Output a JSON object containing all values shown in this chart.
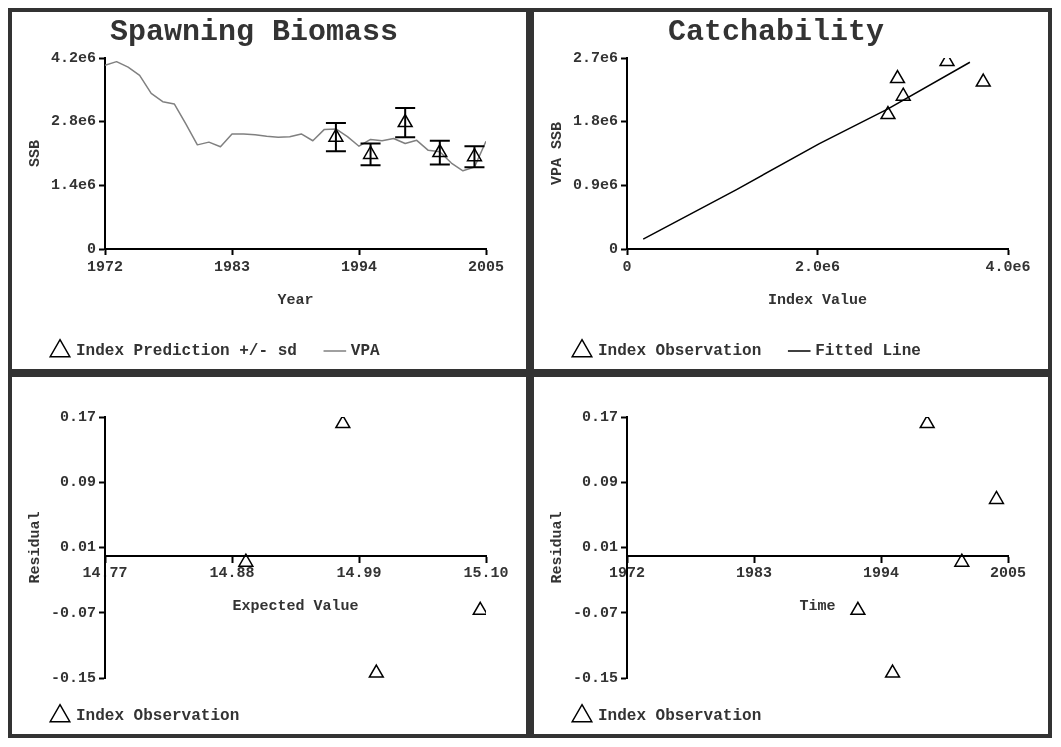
{
  "chart_data": [
    {
      "type": "scatter",
      "title": "Spawning Biomass",
      "xlabel": "Year",
      "ylabel": "SSB",
      "xlim": [
        1972,
        2005
      ],
      "xticks": [
        1972,
        1983,
        1994,
        2005
      ],
      "ylim": [
        0,
        4200000
      ],
      "yticks": [
        0,
        {
          "value": 1400000,
          "label": "1.4e6"
        },
        {
          "value": 2800000,
          "label": "2.8e6"
        },
        {
          "value": 4200000,
          "label": "4.2e6"
        }
      ],
      "grid": false,
      "legend": "bottom",
      "series": [
        {
          "name": "Index Prediction +/- sd",
          "type": "scatter",
          "marker": "triangle",
          "color": "#000000",
          "x": [
            1992,
            1995,
            1998,
            2001,
            2004
          ],
          "values": [
            2460000,
            2080000,
            2780000,
            2120000,
            2030000
          ],
          "errors": [
            310000,
            240000,
            320000,
            260000,
            230000
          ]
        },
        {
          "name": "VPA",
          "type": "line",
          "color": "#808080",
          "x": [
            1972,
            1973,
            1974,
            1975,
            1976,
            1977,
            1978,
            1979,
            1980,
            1981,
            1982,
            1983,
            1984,
            1985,
            1986,
            1987,
            1988,
            1989,
            1990,
            1991,
            1992,
            1993,
            1994,
            1995,
            1996,
            1997,
            1998,
            1999,
            2000,
            2001,
            2002,
            2003,
            2004,
            2005
          ],
          "values": [
            4040000,
            4120000,
            4000000,
            3820000,
            3420000,
            3240000,
            3190000,
            2750000,
            2290000,
            2350000,
            2250000,
            2530000,
            2530000,
            2510000,
            2480000,
            2460000,
            2470000,
            2530000,
            2380000,
            2630000,
            2640000,
            2470000,
            2260000,
            2410000,
            2380000,
            2430000,
            2320000,
            2390000,
            2170000,
            2140000,
            1890000,
            1720000,
            1800000,
            2370000
          ]
        }
      ]
    },
    {
      "type": "scatter",
      "title": "Catchability",
      "xlabel": "Index Value",
      "ylabel": "VPA SSB",
      "xlim": [
        0,
        4000000
      ],
      "xticks": [
        0,
        {
          "value": 2000000,
          "label": "2.0e6"
        },
        {
          "value": 4000000,
          "label": "4.0e6"
        }
      ],
      "ylim": [
        0,
        2700000
      ],
      "yticks": [
        0,
        {
          "value": 900000,
          "label": "0.9e6"
        },
        {
          "value": 1800000,
          "label": "1.8e6"
        },
        {
          "value": 2700000,
          "label": "2.7e6"
        }
      ],
      "grid": false,
      "legend": "bottom",
      "series": [
        {
          "name": "Index Observation",
          "type": "scatter",
          "marker": "triangle",
          "color": "#000000",
          "x": [
            2840000,
            3360000,
            3740000,
            2900000,
            2740000
          ],
          "values": [
            2410000,
            2650000,
            2360000,
            2160000,
            1900000
          ]
        },
        {
          "name": "Fitted Line",
          "type": "line",
          "color": "#000000",
          "x": [
            170000,
            1150000,
            2020000,
            2740000,
            3600000
          ],
          "values": [
            140000,
            840000,
            1490000,
            1980000,
            2640000
          ]
        }
      ]
    },
    {
      "type": "scatter",
      "xlabel": "Expected Value",
      "ylabel": "Residual",
      "xlim": [
        14.77,
        15.1
      ],
      "xticks": [
        14.77,
        14.88,
        14.99,
        {
          "value": 15.1,
          "label": "15.10"
        }
      ],
      "ylim": [
        -0.15,
        0.17
      ],
      "yticks": [
        -0.15,
        -0.07,
        0.01,
        0.09,
        0.17
      ],
      "grid": false,
      "legend": "bottom",
      "series": [
        {
          "name": "Index Observation",
          "type": "scatter",
          "marker": "triangle",
          "color": "#000000",
          "x": [
            14.976,
            14.892,
            15.005,
            15.095
          ],
          "values": [
            0.162,
            -0.008,
            -0.144,
            -0.067
          ]
        }
      ]
    },
    {
      "type": "scatter",
      "xlabel": "Time",
      "ylabel": "Residual",
      "xlim": [
        1972,
        2005
      ],
      "xticks": [
        1972,
        1983,
        1994,
        2005
      ],
      "ylim": [
        -0.15,
        0.17
      ],
      "yticks": [
        -0.15,
        -0.07,
        0.01,
        0.09,
        0.17
      ],
      "grid": false,
      "legend": "bottom",
      "series": [
        {
          "name": "Index Observation",
          "type": "scatter",
          "marker": "triangle",
          "color": "#000000",
          "x": [
            1992,
            1995,
            1998,
            2001,
            2004
          ],
          "values": [
            -0.067,
            -0.144,
            0.162,
            -0.008,
            0.069
          ]
        }
      ]
    }
  ]
}
